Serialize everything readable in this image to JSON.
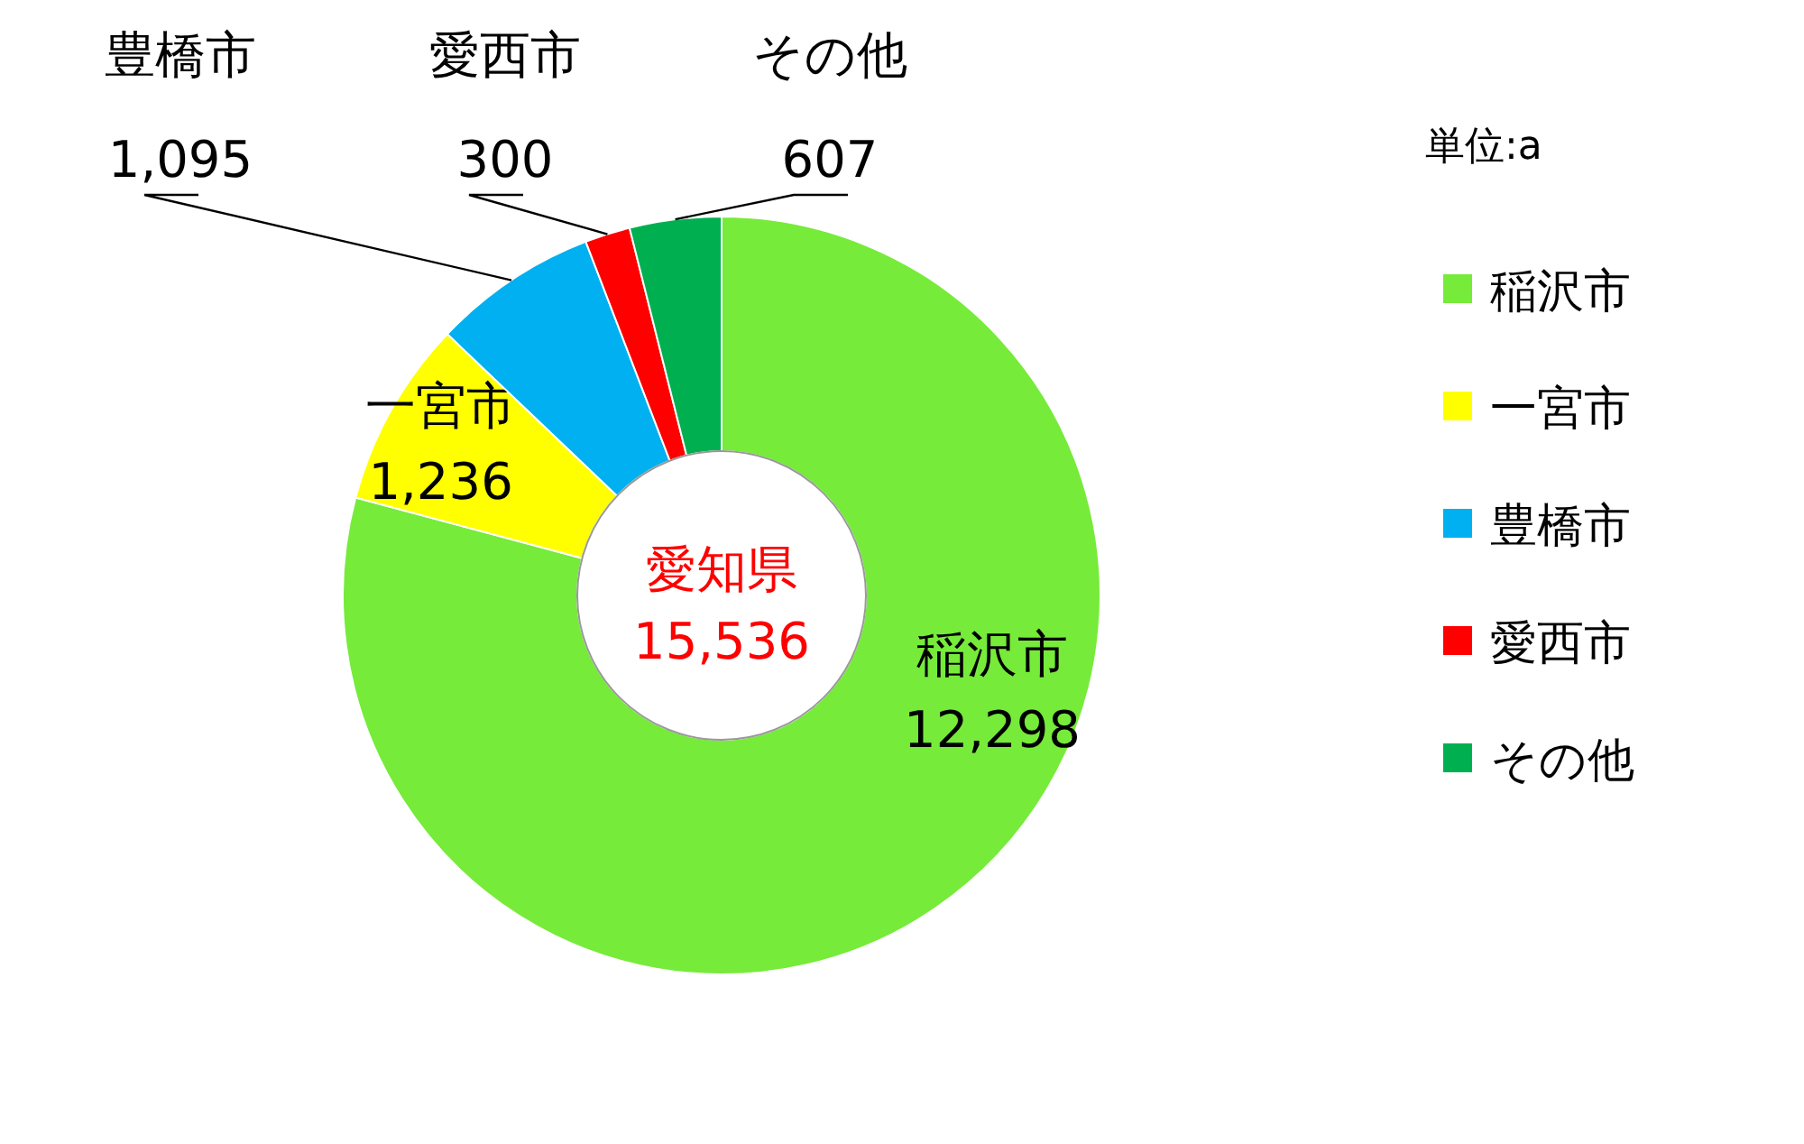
{
  "chart_data": {
    "type": "donut",
    "categories": [
      "稲沢市",
      "一宮市",
      "豊橋市",
      "愛西市",
      "その他"
    ],
    "values": [
      12298,
      1236,
      1095,
      300,
      607
    ],
    "value_labels": [
      "12,298",
      "1,236",
      "1,095",
      "300",
      "607"
    ],
    "colors": [
      "#76eb3a",
      "#ffff00",
      "#00b0f0",
      "#ff0000",
      "#00b050"
    ],
    "annotations": [
      "愛知県",
      "15,536",
      "単位:a"
    ],
    "legend": "right"
  }
}
